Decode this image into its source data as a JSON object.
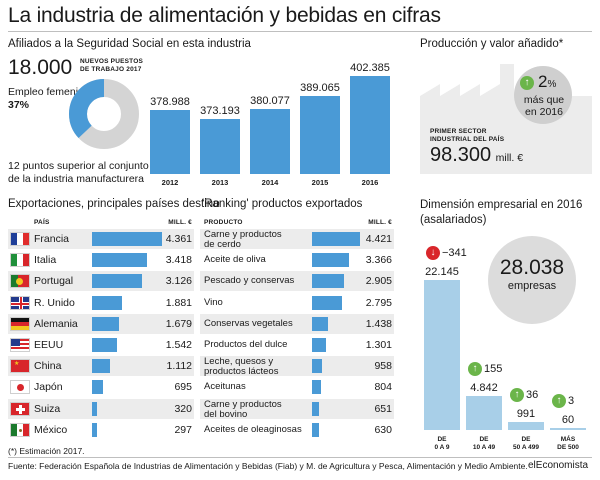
{
  "title": "La industria de alimentación y bebidas en cifras",
  "afiliados": {
    "section_title": "Afiliados a la Seguridad Social en esta industria",
    "new_jobs": "18.000",
    "new_jobs_label_1": "NUEVOS PUESTOS",
    "new_jobs_label_2": "DE TRABAJO 2017",
    "female_label": "Empleo femenino",
    "female_value": "37%",
    "female_fraction": 0.37,
    "note_1": "12 puntos superior al conjunto",
    "note_2": "de la industria manufacturera"
  },
  "produccion": {
    "section_title": "Producción y valor añadido*",
    "growth": "2",
    "growth_unit": "%",
    "growth_text_1": "más que",
    "growth_text_2": "en 2016",
    "sector_label_1": "PRIMER SECTOR",
    "sector_label_2": "INDUSTRIAL DEL PAÍS",
    "value": "98.300",
    "value_unit": "mill. €"
  },
  "exportaciones": {
    "section_title": "Exportaciones, principales países destino",
    "col_country": "PAÍS",
    "col_value": "MILL. €"
  },
  "ranking": {
    "section_title": "'Ranking' productos exportados",
    "col_product": "PRODUCTO",
    "col_value": "MILL. €"
  },
  "dimension": {
    "section_title_1": "Dimensión empresarial en 2016",
    "section_title_2": "(asalariados)",
    "total": "28.038",
    "total_label": "empresas"
  },
  "footnote": "(*) Estimación 2017.",
  "source": "Fuente: Federación Española de Industrias de Alimentación y Bebidas (Fiab) y M. de Agricultura y Pesca, Alimentación y Medio Ambiente.",
  "brand": "elEconomista",
  "colors": {
    "bar": "#4a9ad6",
    "bar_light": "#a8cfe8",
    "up": "#6bb54a",
    "down": "#d9262b",
    "band": "#ececec"
  },
  "chart_data": [
    {
      "type": "bar",
      "categories": [
        "2012",
        "2013",
        "2014",
        "2015",
        "2016"
      ],
      "values": [
        378988,
        373193,
        380077,
        389065,
        402385
      ],
      "labels": [
        "378.988",
        "373.193",
        "380.077",
        "389.065",
        "402.385"
      ]
    },
    {
      "type": "pie",
      "categories": [
        "Empleo femenino",
        ""
      ],
      "values": [
        37,
        63
      ]
    },
    {
      "type": "bar",
      "categories": [
        "Francia",
        "Italia",
        "Portugal",
        "R. Unido",
        "Alemania",
        "EEUU",
        "China",
        "Japón",
        "Suiza",
        "México"
      ],
      "flags": [
        "fr",
        "it",
        "pt",
        "gb",
        "de",
        "us",
        "cn",
        "jp",
        "ch",
        "mx"
      ],
      "values": [
        4361,
        3418,
        3126,
        1881,
        1679,
        1542,
        1112,
        695,
        320,
        297
      ],
      "labels": [
        "4.361",
        "3.418",
        "3.126",
        "1.881",
        "1.679",
        "1.542",
        "1.112",
        "695",
        "320",
        "297"
      ]
    },
    {
      "type": "bar",
      "categories": [
        [
          "Carne y productos",
          "de cerdo"
        ],
        [
          "Aceite de oliva"
        ],
        [
          "Pescado y conservas"
        ],
        [
          "Vino"
        ],
        [
          "Conservas vegetales"
        ],
        [
          "Productos del dulce"
        ],
        [
          "Leche, quesos y",
          "productos lácteos"
        ],
        [
          "Aceitunas"
        ],
        [
          "Carne y productos",
          "del bovino"
        ],
        [
          "Aceites de oleaginosas"
        ]
      ],
      "values": [
        4421,
        3366,
        2905,
        2795,
        1438,
        1301,
        958,
        804,
        651,
        630
      ],
      "labels": [
        "4.421",
        "3.366",
        "2.905",
        "2.795",
        "1.438",
        "1.301",
        "958",
        "804",
        "651",
        "630"
      ]
    },
    {
      "type": "bar",
      "categories": [
        [
          "DE",
          "0 A 9"
        ],
        [
          "DE",
          "10 A 49"
        ],
        [
          "DE",
          "50 A 499"
        ],
        [
          "MÁS",
          "DE 500"
        ]
      ],
      "values": [
        22145,
        4842,
        991,
        60
      ],
      "labels": [
        "22.145",
        "4.842",
        "991",
        "60"
      ],
      "changes": [
        "−341",
        "155",
        "36",
        "3"
      ],
      "change_dir": [
        "down",
        "up",
        "up",
        "up"
      ]
    }
  ]
}
